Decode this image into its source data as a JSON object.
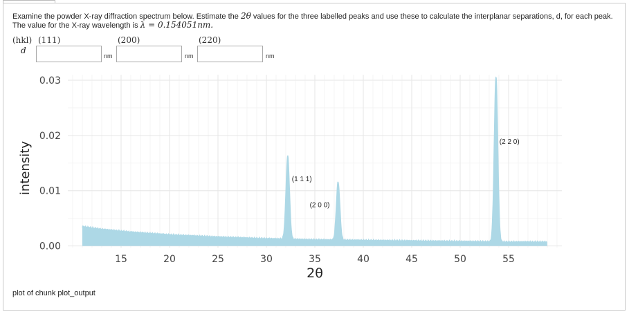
{
  "question": {
    "text_before": "Examine the powder X-ray diffraction spectrum below. Estimate the ",
    "symbol_2theta": "2θ",
    "text_mid": " values for the three labelled peaks and use these to calculate the interplanar separations, d, for each peak. The value for the X-ray wavelength is ",
    "lambda_expr": "λ  =  0.154051nm.",
    "text_after": ""
  },
  "answer_table": {
    "row_header": "(hkl)",
    "row_label": "d",
    "columns": [
      {
        "hkl": "(111)",
        "value": "",
        "unit": "nm"
      },
      {
        "hkl": "(200)",
        "value": "",
        "unit": "nm"
      },
      {
        "hkl": "(220)",
        "value": "",
        "unit": "nm"
      }
    ]
  },
  "chart_data": {
    "type": "area",
    "xlabel": "2θ",
    "ylabel": "intensity",
    "xlim": [
      9.5,
      60.5
    ],
    "ylim": [
      -0.0003,
      0.031
    ],
    "xticks": [
      15,
      20,
      25,
      30,
      35,
      40,
      45,
      50,
      55
    ],
    "yticks": [
      0.0,
      0.01,
      0.02,
      0.03
    ],
    "ytick_labels": [
      "0.00",
      "0.01",
      "0.02",
      "0.03"
    ],
    "grid": true,
    "color": "#add8e6",
    "baseline": [
      {
        "x": 11.0,
        "y": 0.0035
      },
      {
        "x": 13.0,
        "y": 0.003
      },
      {
        "x": 16.0,
        "y": 0.0025
      },
      {
        "x": 20.0,
        "y": 0.002
      },
      {
        "x": 25.0,
        "y": 0.0016
      },
      {
        "x": 30.0,
        "y": 0.0013
      },
      {
        "x": 35.0,
        "y": 0.0011
      },
      {
        "x": 40.0,
        "y": 0.001
      },
      {
        "x": 45.0,
        "y": 0.0009
      },
      {
        "x": 50.0,
        "y": 0.0008
      },
      {
        "x": 55.0,
        "y": 0.0007
      },
      {
        "x": 59.0,
        "y": 0.0007
      }
    ],
    "peaks": [
      {
        "x": 32.2,
        "height": 0.015,
        "label": "(1 1 1)"
      },
      {
        "x": 37.4,
        "height": 0.0105,
        "label": "(2 0 0)"
      },
      {
        "x": 53.7,
        "height": 0.03,
        "label": "(2 2 0)"
      }
    ]
  },
  "caption": "plot of chunk plot_output"
}
